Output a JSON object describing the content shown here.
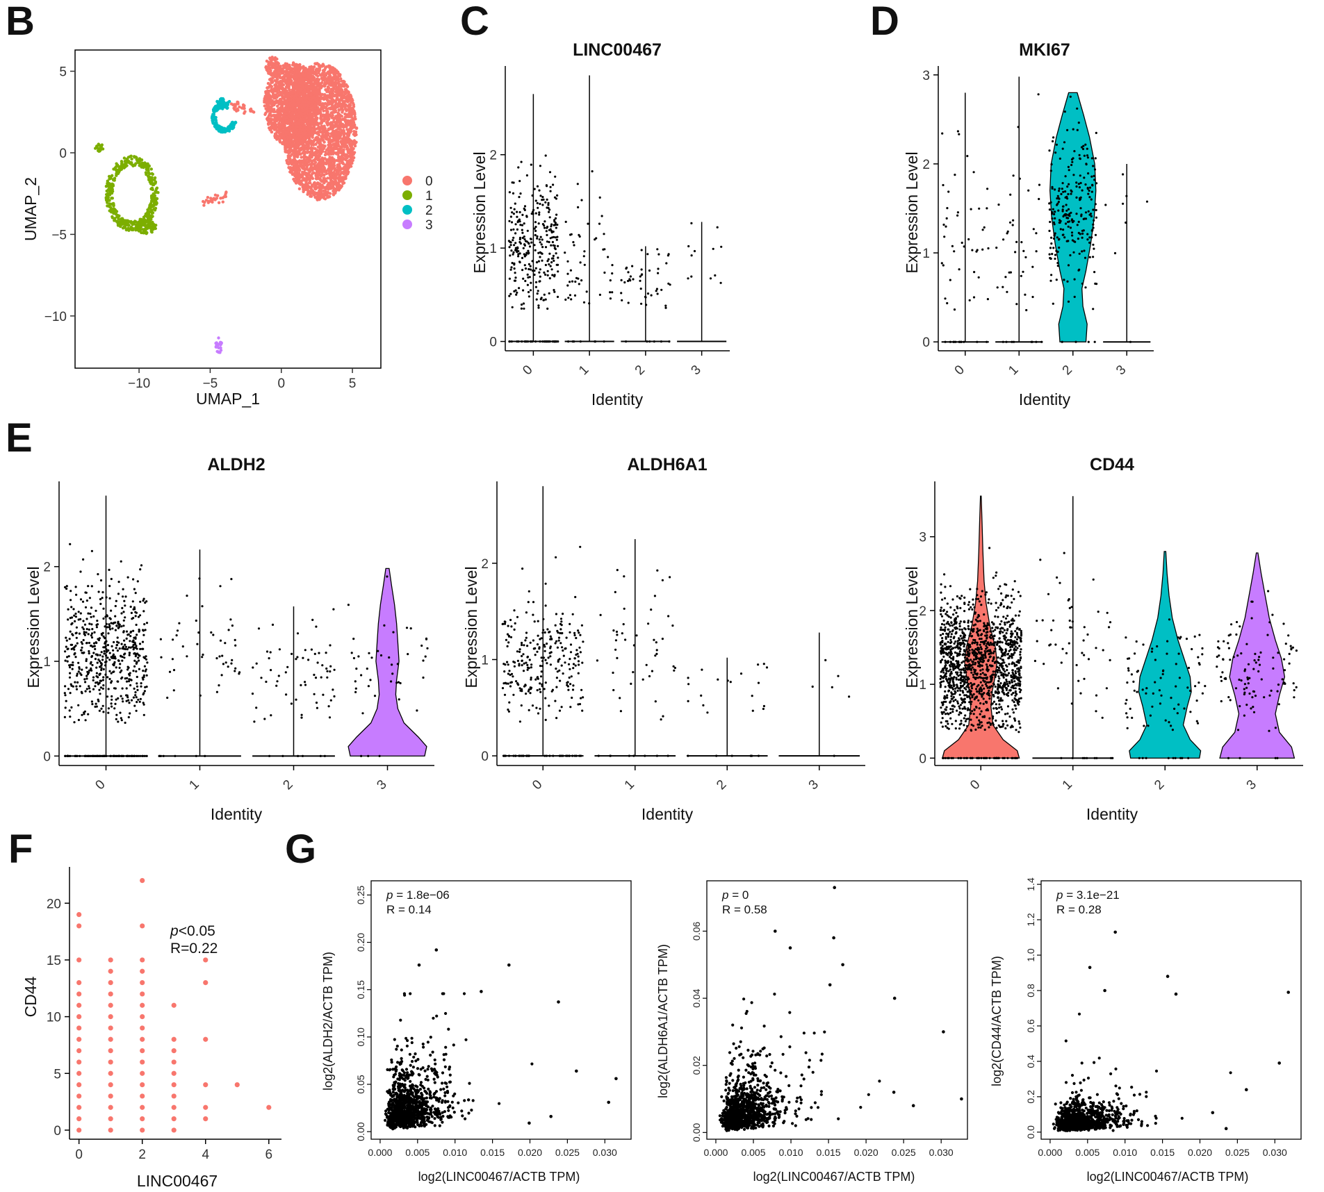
{
  "panel_labels": {
    "B": "B",
    "C": "C",
    "D": "D",
    "E": "E",
    "F": "F",
    "G": "G"
  },
  "colors": {
    "c0": "#F8766D",
    "c1": "#7CAE00",
    "c2": "#00BFC4",
    "c3": "#C77CFF",
    "point": "#000000"
  },
  "chart_data": [
    {
      "id": "B",
      "type": "scatter",
      "title": "",
      "xlabel": "UMAP_1",
      "ylabel": "UMAP_2",
      "xlim": [
        -14.5,
        7
      ],
      "ylim": [
        -13.2,
        6.3
      ],
      "xticks": [
        -10,
        -5,
        0,
        5
      ],
      "yticks": [
        5,
        0,
        -5,
        -10
      ],
      "xtick_labels": [
        "−10",
        "−5",
        "0",
        "5"
      ],
      "ytick_labels": [
        "5",
        "0",
        "−5",
        "−10"
      ],
      "legend": {
        "position": "right",
        "entries": [
          "0",
          "1",
          "2",
          "3"
        ]
      },
      "clusters": [
        {
          "name": "0",
          "shapes": [
            {
              "kind": "blob",
              "cx": 2.7,
              "cy": 1.3,
              "rx": 2.6,
              "ry": 4.2
            },
            {
              "kind": "blob",
              "cx": 0.7,
              "cy": 3.0,
              "rx": 1.9,
              "ry": 2.6
            },
            {
              "kind": "blob",
              "cx": -0.6,
              "cy": 5.3,
              "rx": 0.5,
              "ry": 0.6
            },
            {
              "kind": "line",
              "x1": -5.5,
              "y1": -3.1,
              "x2": -3.8,
              "y2": -2.6,
              "jit": 0.12
            },
            {
              "kind": "line",
              "x1": -3.5,
              "y1": 2.9,
              "x2": -2.0,
              "y2": 2.6,
              "jit": 0.2
            }
          ]
        },
        {
          "name": "1",
          "shapes": [
            {
              "kind": "ring",
              "cx": -10.5,
              "cy": -2.5,
              "rx": 1.6,
              "ry": 2.0
            },
            {
              "kind": "blob",
              "cx": -9.5,
              "cy": -4.5,
              "rx": 0.7,
              "ry": 0.5
            },
            {
              "kind": "blob",
              "cx": -12.8,
              "cy": 0.3,
              "rx": 0.3,
              "ry": 0.25
            }
          ]
        },
        {
          "name": "2",
          "shapes": [
            {
              "kind": "arc",
              "cx": -4.0,
              "cy": 2.2,
              "rx": 0.8,
              "ry": 0.9
            },
            {
              "kind": "blob",
              "cx": -4.1,
              "cy": 3.0,
              "rx": 0.5,
              "ry": 0.35
            }
          ]
        },
        {
          "name": "3",
          "shapes": [
            {
              "kind": "blob",
              "cx": -4.4,
              "cy": -11.8,
              "rx": 0.22,
              "ry": 0.5
            }
          ]
        }
      ]
    },
    {
      "id": "C",
      "type": "violin",
      "title": "LINC00467",
      "xlabel": "Identity",
      "ylabel": "Expression Level",
      "categories": [
        "0",
        "1",
        "2",
        "3"
      ],
      "ylim": [
        -0.1,
        2.95
      ],
      "yticks": [
        0,
        1,
        2
      ],
      "series": [
        {
          "name": "0",
          "max": 2.65,
          "zero_frac": 0.65,
          "nz_mean": 1.0,
          "nz_sd": 0.38,
          "n_points": 330,
          "filled": false
        },
        {
          "name": "1",
          "max": 2.85,
          "zero_frac": 0.85,
          "nz_mean": 1.0,
          "nz_sd": 0.45,
          "n_points": 60,
          "filled": false
        },
        {
          "name": "2",
          "max": 1.02,
          "zero_frac": 0.9,
          "nz_mean": 0.65,
          "nz_sd": 0.18,
          "n_points": 50,
          "filled": false
        },
        {
          "name": "3",
          "max": 1.28,
          "zero_frac": 0.95,
          "nz_mean": 0.9,
          "nz_sd": 0.18,
          "n_points": 12,
          "filled": false
        }
      ]
    },
    {
      "id": "D",
      "type": "violin",
      "title": "MKI67",
      "xlabel": "Identity",
      "ylabel": "Expression Level",
      "categories": [
        "0",
        "1",
        "2",
        "3"
      ],
      "ylim": [
        -0.1,
        3.1
      ],
      "yticks": [
        0,
        1,
        2,
        3
      ],
      "series": [
        {
          "name": "0",
          "max": 2.8,
          "zero_frac": 0.9,
          "nz_mean": 1.1,
          "nz_sd": 0.5,
          "n_points": 55,
          "filled": false
        },
        {
          "name": "1",
          "max": 2.98,
          "zero_frac": 0.88,
          "nz_mean": 1.2,
          "nz_sd": 0.55,
          "n_points": 45,
          "filled": false
        },
        {
          "name": "2",
          "max": 2.8,
          "zero_frac": 0.05,
          "nz_mean": 1.5,
          "nz_sd": 0.45,
          "n_points": 250,
          "filled": true,
          "profile": [
            [
              0,
              0.55
            ],
            [
              0.2,
              0.6
            ],
            [
              0.4,
              0.42
            ],
            [
              0.6,
              0.38
            ],
            [
              0.8,
              0.55
            ],
            [
              1.1,
              0.75
            ],
            [
              1.4,
              0.9
            ],
            [
              1.7,
              0.97
            ],
            [
              2.0,
              0.92
            ],
            [
              2.3,
              0.7
            ],
            [
              2.55,
              0.45
            ],
            [
              2.8,
              0.18
            ]
          ]
        },
        {
          "name": "3",
          "max": 2.0,
          "zero_frac": 0.9,
          "nz_mean": 1.3,
          "nz_sd": 0.4,
          "n_points": 8,
          "filled": false
        }
      ]
    },
    {
      "id": "E1",
      "type": "violin",
      "title": "ALDH2",
      "xlabel": "Identity",
      "ylabel": "Expression Level",
      "categories": [
        "0",
        "1",
        "2",
        "3"
      ],
      "ylim": [
        -0.1,
        2.9
      ],
      "yticks": [
        0,
        1,
        2
      ],
      "series": [
        {
          "name": "0",
          "max": 2.75,
          "zero_frac": 0.6,
          "nz_mean": 1.1,
          "nz_sd": 0.35,
          "n_points": 650,
          "filled": false
        },
        {
          "name": "1",
          "max": 2.18,
          "zero_frac": 0.85,
          "nz_mean": 1.1,
          "nz_sd": 0.4,
          "n_points": 55,
          "filled": false
        },
        {
          "name": "2",
          "max": 1.58,
          "zero_frac": 0.85,
          "nz_mean": 0.85,
          "nz_sd": 0.3,
          "n_points": 70,
          "filled": false
        },
        {
          "name": "3",
          "max": 1.98,
          "zero_frac": 0.5,
          "nz_mean": 1.0,
          "nz_sd": 0.3,
          "n_points": 45,
          "filled": true,
          "profile": [
            [
              0,
              0.9
            ],
            [
              0.1,
              0.95
            ],
            [
              0.2,
              0.75
            ],
            [
              0.35,
              0.4
            ],
            [
              0.5,
              0.25
            ],
            [
              0.65,
              0.2
            ],
            [
              0.8,
              0.22
            ],
            [
              1.0,
              0.28
            ],
            [
              1.2,
              0.25
            ],
            [
              1.4,
              0.22
            ],
            [
              1.6,
              0.17
            ],
            [
              1.8,
              0.1
            ],
            [
              1.98,
              0.04
            ]
          ]
        }
      ]
    },
    {
      "id": "E2",
      "type": "violin",
      "title": "ALDH6A1",
      "xlabel": "Identity",
      "ylabel": "Expression Level",
      "categories": [
        "0",
        "1",
        "2",
        "3"
      ],
      "ylim": [
        -0.1,
        2.85
      ],
      "yticks": [
        0,
        1,
        2
      ],
      "series": [
        {
          "name": "0",
          "max": 2.8,
          "zero_frac": 0.75,
          "nz_mean": 1.0,
          "nz_sd": 0.32,
          "n_points": 300,
          "filled": false
        },
        {
          "name": "1",
          "max": 2.25,
          "zero_frac": 0.85,
          "nz_mean": 1.2,
          "nz_sd": 0.4,
          "n_points": 55,
          "filled": false
        },
        {
          "name": "2",
          "max": 1.02,
          "zero_frac": 0.9,
          "nz_mean": 0.7,
          "nz_sd": 0.2,
          "n_points": 25,
          "filled": false
        },
        {
          "name": "3",
          "max": 1.28,
          "zero_frac": 0.95,
          "nz_mean": 0.9,
          "nz_sd": 0.2,
          "n_points": 6,
          "filled": false
        }
      ]
    },
    {
      "id": "E3",
      "type": "violin",
      "title": "CD44",
      "xlabel": "Identity",
      "ylabel": "Expression Level",
      "categories": [
        "0",
        "1",
        "2",
        "3"
      ],
      "ylim": [
        -0.1,
        3.75
      ],
      "yticks": [
        0,
        1,
        2,
        3
      ],
      "series": [
        {
          "name": "0",
          "max": 3.55,
          "zero_frac": 0.25,
          "nz_mean": 1.3,
          "nz_sd": 0.45,
          "n_points": 1400,
          "filled": true,
          "profile": [
            [
              0,
              0.95
            ],
            [
              0.1,
              0.9
            ],
            [
              0.25,
              0.55
            ],
            [
              0.45,
              0.3
            ],
            [
              0.7,
              0.25
            ],
            [
              0.9,
              0.28
            ],
            [
              1.1,
              0.35
            ],
            [
              1.3,
              0.4
            ],
            [
              1.5,
              0.36
            ],
            [
              1.8,
              0.22
            ],
            [
              2.1,
              0.13
            ],
            [
              2.4,
              0.08
            ],
            [
              2.8,
              0.05
            ],
            [
              3.2,
              0.03
            ],
            [
              3.55,
              0.01
            ]
          ]
        },
        {
          "name": "1",
          "max": 3.55,
          "zero_frac": 0.85,
          "nz_mean": 1.5,
          "nz_sd": 0.6,
          "n_points": 60,
          "filled": false
        },
        {
          "name": "2",
          "max": 2.8,
          "zero_frac": 0.45,
          "nz_mean": 1.0,
          "nz_sd": 0.4,
          "n_points": 90,
          "filled": true,
          "profile": [
            [
              0,
              0.85
            ],
            [
              0.1,
              0.88
            ],
            [
              0.25,
              0.62
            ],
            [
              0.45,
              0.45
            ],
            [
              0.7,
              0.55
            ],
            [
              0.9,
              0.65
            ],
            [
              1.1,
              0.62
            ],
            [
              1.3,
              0.5
            ],
            [
              1.6,
              0.32
            ],
            [
              1.9,
              0.18
            ],
            [
              2.2,
              0.1
            ],
            [
              2.5,
              0.05
            ],
            [
              2.8,
              0.02
            ]
          ]
        },
        {
          "name": "3",
          "max": 2.78,
          "zero_frac": 0.35,
          "nz_mean": 1.2,
          "nz_sd": 0.4,
          "n_points": 110,
          "filled": true,
          "profile": [
            [
              0,
              0.92
            ],
            [
              0.15,
              0.85
            ],
            [
              0.35,
              0.55
            ],
            [
              0.6,
              0.45
            ],
            [
              0.85,
              0.55
            ],
            [
              1.1,
              0.68
            ],
            [
              1.35,
              0.6
            ],
            [
              1.6,
              0.45
            ],
            [
              1.9,
              0.3
            ],
            [
              2.2,
              0.2
            ],
            [
              2.5,
              0.1
            ],
            [
              2.78,
              0.02
            ]
          ]
        }
      ]
    },
    {
      "id": "F",
      "type": "scatter",
      "title": "",
      "xlabel": "LINC00467",
      "ylabel": "CD44",
      "xlim": [
        -0.3,
        6.4
      ],
      "ylim": [
        -0.8,
        23.2
      ],
      "xticks": [
        0,
        2,
        4,
        6
      ],
      "yticks": [
        0,
        5,
        10,
        15,
        20
      ],
      "annotation": {
        "p": "p",
        "p_text": "<0.05",
        "r_text": "R=0.22"
      },
      "points": [
        {
          "x": 0,
          "ys": [
            0,
            1,
            2,
            3,
            4,
            5,
            6,
            7,
            8,
            9,
            10,
            11,
            12,
            13,
            15,
            18,
            19
          ]
        },
        {
          "x": 1,
          "ys": [
            0,
            1,
            2,
            3,
            4,
            5,
            6,
            7,
            8,
            9,
            10,
            11,
            12,
            13,
            14,
            15
          ]
        },
        {
          "x": 2,
          "ys": [
            0,
            1,
            2,
            3,
            4,
            5,
            6,
            7,
            8,
            9,
            10,
            11,
            12,
            13,
            14,
            15,
            18,
            22
          ]
        },
        {
          "x": 3,
          "ys": [
            0,
            1,
            2,
            3,
            4,
            5,
            6,
            7,
            8,
            11
          ]
        },
        {
          "x": 4,
          "ys": [
            1,
            2,
            4,
            8,
            13,
            15
          ]
        },
        {
          "x": 5,
          "ys": [
            4
          ]
        },
        {
          "x": 6,
          "ys": [
            2
          ]
        }
      ]
    },
    {
      "id": "G1",
      "type": "scatter",
      "title": "",
      "xlabel": "log2(LINC00467/ACTB TPM)",
      "ylabel": "log2(ALDH2/ACTB TPM)",
      "xlim": [
        -0.0012,
        0.0335
      ],
      "ylim": [
        -0.008,
        0.265
      ],
      "xticks": [
        0.0,
        0.005,
        0.01,
        0.015,
        0.02,
        0.025,
        0.03
      ],
      "yticks": [
        0.0,
        0.05,
        0.1,
        0.15,
        0.2,
        0.25
      ],
      "annotation": {
        "p": "p",
        "p_text": " = 1.8e−06",
        "r_text": "R = 0.14"
      },
      "n_points": 1100,
      "x_mode": 0.0035,
      "y_mode": 0.025,
      "outliers": [
        [
          0.0075,
          0.192
        ],
        [
          0.0172,
          0.176
        ],
        [
          0.0052,
          0.176
        ],
        [
          0.0135,
          0.148
        ],
        [
          0.0238,
          0.137
        ],
        [
          0.0315,
          0.056
        ],
        [
          0.0305,
          0.031
        ],
        [
          0.0228,
          0.016
        ],
        [
          0.0262,
          0.064
        ],
        [
          0.0199,
          0.009
        ]
      ]
    },
    {
      "id": "G2",
      "type": "scatter",
      "title": "",
      "xlabel": "log2(LINC00467/ACTB TPM)",
      "ylabel": "log2(ALDH6A1/ACTB TPM)",
      "xlim": [
        -0.0012,
        0.0335
      ],
      "ylim": [
        -0.002,
        0.075
      ],
      "xticks": [
        0.0,
        0.005,
        0.01,
        0.015,
        0.02,
        0.025,
        0.03
      ],
      "yticks": [
        0.0,
        0.02,
        0.04,
        0.06
      ],
      "annotation": {
        "p": "p",
        "p_text": " = 0",
        "r_text": "R = 0.58"
      },
      "n_points": 1100,
      "x_mode": 0.0035,
      "y_mode": 0.006,
      "outliers": [
        [
          0.0158,
          0.073
        ],
        [
          0.0079,
          0.06
        ],
        [
          0.0157,
          0.058
        ],
        [
          0.0099,
          0.055
        ],
        [
          0.0169,
          0.05
        ],
        [
          0.0152,
          0.044
        ],
        [
          0.0238,
          0.04
        ],
        [
          0.0303,
          0.03
        ],
        [
          0.0327,
          0.01
        ],
        [
          0.0263,
          0.008
        ],
        [
          0.0237,
          0.012
        ]
      ]
    },
    {
      "id": "G3",
      "type": "scatter",
      "title": "",
      "xlabel": "log2(LINC00467/ACTB TPM)",
      "ylabel": "log2(CD44/ACTB TPM)",
      "xlim": [
        -0.0012,
        0.0335
      ],
      "ylim": [
        -0.04,
        1.42
      ],
      "xticks": [
        0.0,
        0.005,
        0.01,
        0.015,
        0.02,
        0.025,
        0.03
      ],
      "yticks": [
        0.0,
        0.2,
        0.4,
        0.6,
        0.8,
        1.0,
        1.2,
        1.4
      ],
      "annotation": {
        "p": "p",
        "p_text": " = 3.1e−21",
        "r_text": "R = 0.28"
      },
      "n_points": 1100,
      "x_mode": 0.0035,
      "y_mode": 0.06,
      "outliers": [
        [
          0.0087,
          1.13
        ],
        [
          0.0053,
          0.93
        ],
        [
          0.0157,
          0.88
        ],
        [
          0.0318,
          0.79
        ],
        [
          0.0073,
          0.8
        ],
        [
          0.0168,
          0.78
        ],
        [
          0.0306,
          0.39
        ],
        [
          0.0262,
          0.24
        ],
        [
          0.0235,
          0.02
        ],
        [
          0.0217,
          0.11
        ]
      ]
    }
  ]
}
